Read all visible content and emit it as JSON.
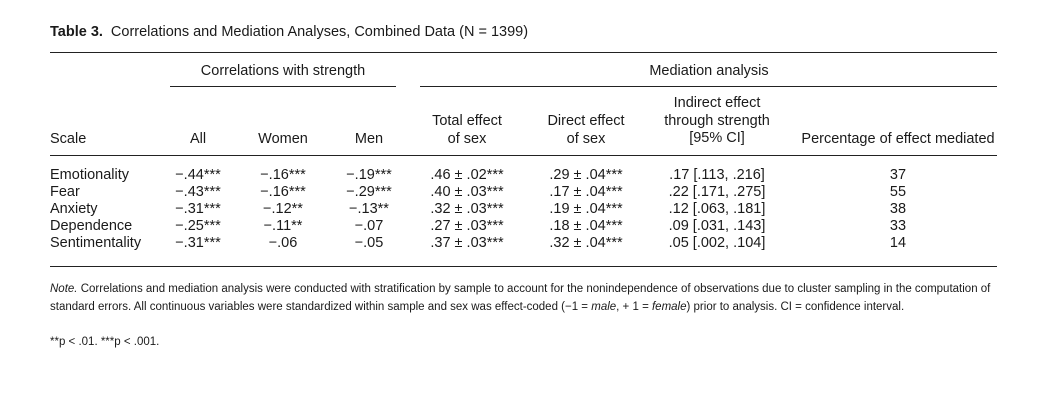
{
  "caption": {
    "label": "Table 3.",
    "title": "Correlations and Mediation Analyses, Combined Data (N = 1399)"
  },
  "groups": {
    "correlations": "Correlations with strength",
    "mediation": "Mediation analysis"
  },
  "columns": {
    "scale": "Scale",
    "all": "All",
    "women": "Women",
    "men": "Men",
    "total_1": "Total effect",
    "total_2": "of sex",
    "direct_1": "Direct effect",
    "direct_2": "of sex",
    "indirect_1": "Indirect effect",
    "indirect_2": "through strength",
    "indirect_3": "[95% CI]",
    "percent": "Percentage of effect mediated"
  },
  "rows": [
    {
      "scale": "Emotionality",
      "all": "−.44***",
      "women": "−.16***",
      "men": "−.19***",
      "total": ".46 ± .02***",
      "direct": ".29 ± .04***",
      "indirect": ".17 [.113, .216]",
      "percent": "37"
    },
    {
      "scale": "Fear",
      "all": "−.43***",
      "women": "−.16***",
      "men": "−.29***",
      "total": ".40 ± .03***",
      "direct": ".17 ± .04***",
      "indirect": ".22 [.171, .275]",
      "percent": "55"
    },
    {
      "scale": "Anxiety",
      "all": "−.31***",
      "women": "−.12**",
      "men": "−.13**",
      "total": ".32 ± .03***",
      "direct": ".19 ± .04***",
      "indirect": ".12 [.063, .181]",
      "percent": "38"
    },
    {
      "scale": "Dependence",
      "all": "−.25***",
      "women": "−.11**",
      "men": "−.07",
      "total": ".27 ± .03***",
      "direct": ".18 ± .04***",
      "indirect": ".09 [.031, .143]",
      "percent": "33"
    },
    {
      "scale": "Sentimentality",
      "all": "−.31***",
      "women": "−.06",
      "men": "−.05",
      "total": ".37 ± .03***",
      "direct": ".32 ± .04***",
      "indirect": ".05 [.002, .104]",
      "percent": "14"
    }
  ],
  "note": {
    "label": "Note.",
    "text_1": "Correlations and mediation analysis were conducted with stratification by sample to account for the nonindependence of observations due to cluster sampling in the computation of standard errors. All continuous variables were standardized within sample and sex was effect-coded (−1 =",
    "male": "male",
    "text_2": ", + 1 =",
    "female": "female",
    "text_3": ") prior to analysis. CI = confidence interval.",
    "significance": "**p < .01. ***p < .001."
  }
}
